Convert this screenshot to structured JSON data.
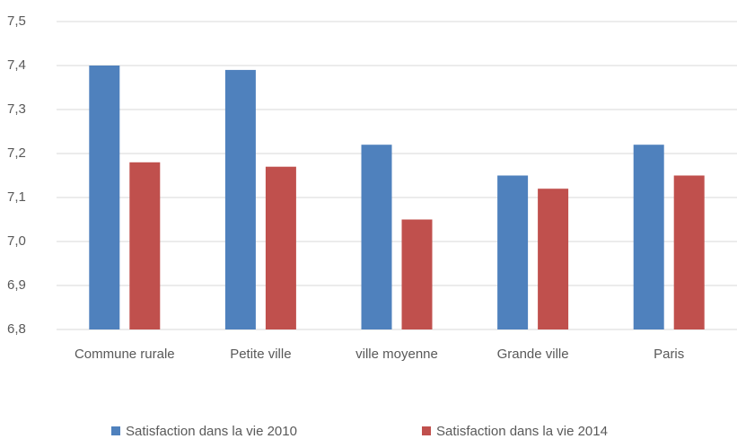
{
  "chart_data": {
    "type": "bar",
    "categories": [
      "Commune rurale",
      "Petite ville",
      "ville moyenne",
      "Grande ville",
      "Paris"
    ],
    "series": [
      {
        "name": "Satisfaction dans la vie 2010",
        "color": "#4f81bd",
        "values": [
          7.4,
          7.39,
          7.22,
          7.15,
          7.22
        ]
      },
      {
        "name": "Satisfaction dans la vie 2014",
        "color": "#c0504d",
        "values": [
          7.18,
          7.17,
          7.05,
          7.12,
          7.15
        ]
      }
    ],
    "ylim": [
      6.8,
      7.5
    ],
    "yticks": [
      {
        "value": 6.8,
        "label": "6,8"
      },
      {
        "value": 6.9,
        "label": "6,9"
      },
      {
        "value": 7.0,
        "label": "7,0"
      },
      {
        "value": 7.1,
        "label": "7,1"
      },
      {
        "value": 7.2,
        "label": "7,2"
      },
      {
        "value": 7.3,
        "label": "7,3"
      },
      {
        "value": 7.4,
        "label": "7,4"
      },
      {
        "value": 7.5,
        "label": "7,5"
      }
    ],
    "grid": true,
    "legend": "bottom"
  }
}
